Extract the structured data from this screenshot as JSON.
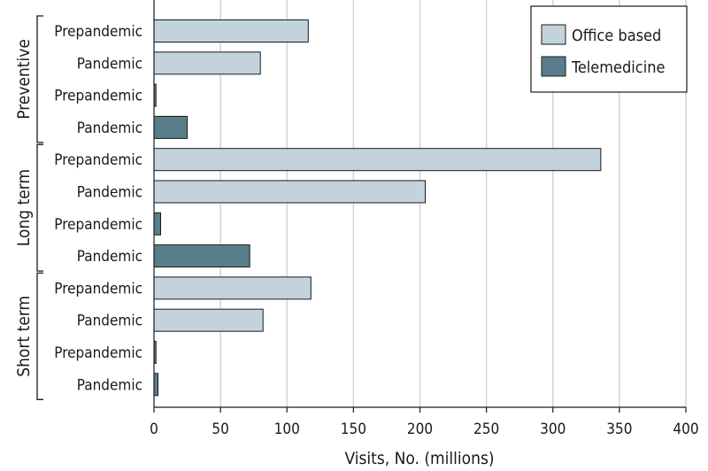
{
  "chart_data": {
    "type": "bar",
    "orientation": "horizontal",
    "xlabel": "Visits, No. (millions)",
    "xlim": [
      0,
      400
    ],
    "x_ticks": [
      0,
      50,
      100,
      150,
      200,
      250,
      300,
      350,
      400
    ],
    "grid": true,
    "legend_position": "top-right",
    "legend": [
      {
        "name": "Office based",
        "color": "#c3d3de"
      },
      {
        "name": "Telemedicine",
        "color": "#5a7d8c"
      }
    ],
    "groups": [
      {
        "name": "Preventive",
        "rows": [
          {
            "label": "Prepandemic",
            "series": "Office based",
            "value": 116
          },
          {
            "label": "Pandemic",
            "series": "Office based",
            "value": 80
          },
          {
            "label": "Prepandemic",
            "series": "Telemedicine",
            "value": 1.5
          },
          {
            "label": "Pandemic",
            "series": "Telemedicine",
            "value": 25
          }
        ]
      },
      {
        "name": "Long term",
        "rows": [
          {
            "label": "Prepandemic",
            "series": "Office based",
            "value": 336
          },
          {
            "label": "Pandemic",
            "series": "Office based",
            "value": 204
          },
          {
            "label": "Prepandemic",
            "series": "Telemedicine",
            "value": 5
          },
          {
            "label": "Pandemic",
            "series": "Telemedicine",
            "value": 72
          }
        ]
      },
      {
        "name": "Short term",
        "rows": [
          {
            "label": "Prepandemic",
            "series": "Office based",
            "value": 118
          },
          {
            "label": "Pandemic",
            "series": "Office based",
            "value": 82
          },
          {
            "label": "Prepandemic",
            "series": "Telemedicine",
            "value": 1.5
          },
          {
            "label": "Pandemic",
            "series": "Telemedicine",
            "value": 3
          }
        ]
      }
    ]
  }
}
